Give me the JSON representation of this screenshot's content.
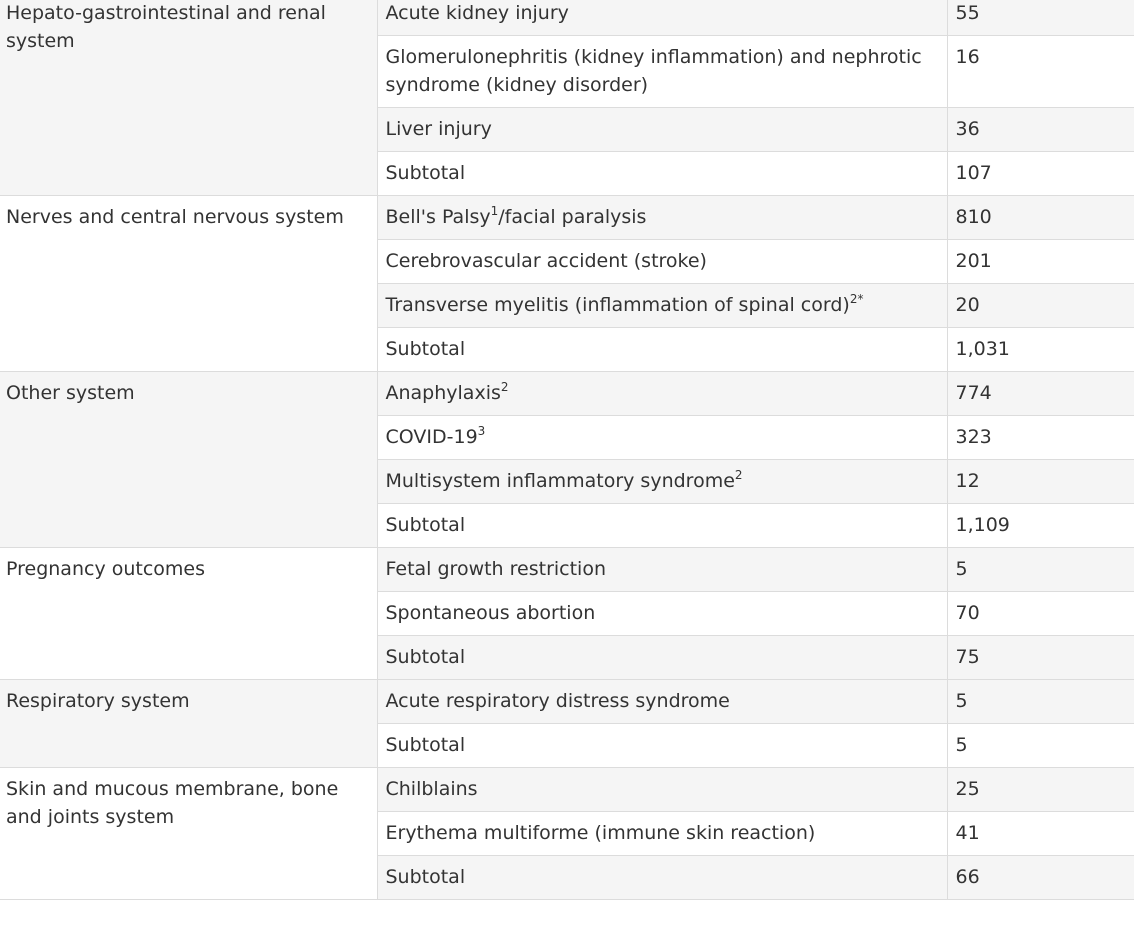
{
  "table": {
    "groups": [
      {
        "name": "Hepato-gastrointestinal and renal system",
        "rows": [
          {
            "condition": "Acute kidney injury",
            "sup": "",
            "count": "55"
          },
          {
            "condition": "Glomerulonephritis (kidney inflammation) and nephrotic syndrome (kidney disorder)",
            "sup": "",
            "count": "16"
          },
          {
            "condition": "Liver injury",
            "sup": "",
            "count": "36"
          },
          {
            "condition": "Subtotal",
            "sup": "",
            "count": "107"
          }
        ]
      },
      {
        "name": "Nerves and central nervous system",
        "rows": [
          {
            "condition": "Bell's Palsy",
            "sup": "1",
            "after": "/facial paralysis",
            "count": "810"
          },
          {
            "condition": "Cerebrovascular accident (stroke)",
            "sup": "",
            "count": "201"
          },
          {
            "condition": "Transverse myelitis (inflammation of spinal cord)",
            "sup": "2*",
            "count": "20"
          },
          {
            "condition": "Subtotal",
            "sup": "",
            "count": "1,031"
          }
        ]
      },
      {
        "name": "Other system",
        "rows": [
          {
            "condition": "Anaphylaxis",
            "sup": "2",
            "count": "774"
          },
          {
            "condition": "COVID-19",
            "sup": "3",
            "count": "323"
          },
          {
            "condition": "Multisystem inflammatory syndrome",
            "sup": "2",
            "count": "12"
          },
          {
            "condition": "Subtotal",
            "sup": "",
            "count": "1,109"
          }
        ]
      },
      {
        "name": "Pregnancy outcomes",
        "rows": [
          {
            "condition": "Fetal growth restriction",
            "sup": "",
            "count": "5"
          },
          {
            "condition": "Spontaneous abortion",
            "sup": "",
            "count": "70"
          },
          {
            "condition": "Subtotal",
            "sup": "",
            "count": "75"
          }
        ]
      },
      {
        "name": "Respiratory system",
        "rows": [
          {
            "condition": "Acute respiratory distress syndrome",
            "sup": "",
            "count": "5"
          },
          {
            "condition": "Subtotal",
            "sup": "",
            "count": "5"
          }
        ]
      },
      {
        "name": "Skin and mucous membrane, bone and joints system",
        "rows": [
          {
            "condition": "Chilblains",
            "sup": "",
            "count": "25"
          },
          {
            "condition": "Erythema multiforme (immune skin reaction)",
            "sup": "",
            "count": "41"
          },
          {
            "condition": "Subtotal",
            "sup": "",
            "count": "66"
          }
        ]
      }
    ],
    "colors": {
      "shade": "#f5f5f5",
      "border": "#dcdcdc",
      "text": "#333333"
    }
  }
}
